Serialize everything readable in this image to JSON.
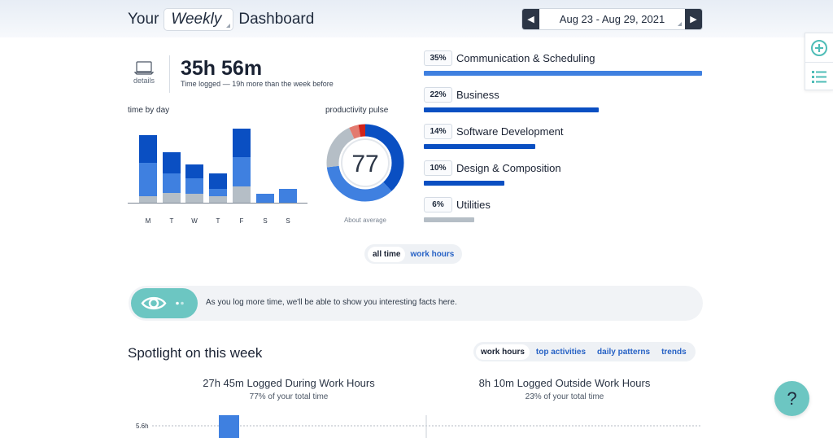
{
  "header": {
    "title_prefix": "Your",
    "period": "Weekly",
    "title_suffix": "Dashboard",
    "date_range": "Aug 23 - Aug 29, 2021"
  },
  "summary": {
    "details_label": "details",
    "total_time": "35h 56m",
    "subtitle": "Time logged — 19h more than the week before"
  },
  "time_by_day": {
    "label": "time by day",
    "days": [
      "M",
      "T",
      "W",
      "T",
      "F",
      "S",
      "S"
    ],
    "colors": {
      "dark": "#0a4fc2",
      "mid": "#3f80e0",
      "gray": "#b5bec6"
    },
    "stacks": [
      {
        "dark": 0.33,
        "mid": 0.39,
        "gray": 0.08
      },
      {
        "dark": 0.25,
        "mid": 0.23,
        "gray": 0.12
      },
      {
        "dark": 0.16,
        "mid": 0.18,
        "gray": 0.11
      },
      {
        "dark": 0.18,
        "mid": 0.09,
        "gray": 0.08
      },
      {
        "dark": 0.34,
        "mid": 0.35,
        "gray": 0.19
      },
      {
        "dark": 0.0,
        "mid": 0.11,
        "gray": 0.0
      },
      {
        "dark": 0.0,
        "mid": 0.16,
        "gray": 0.0
      }
    ]
  },
  "productivity": {
    "label": "productivity pulse",
    "score": "77",
    "caption": "About average",
    "segments": [
      {
        "share": 0.38,
        "color": "#0a4fc2"
      },
      {
        "share": 0.35,
        "color": "#3f80e0"
      },
      {
        "share": 0.2,
        "color": "#b5bec6"
      },
      {
        "share": 0.04,
        "color": "#e37a6f"
      },
      {
        "share": 0.03,
        "color": "#d0231b"
      }
    ]
  },
  "categories": [
    {
      "pct": "35%",
      "name": "Communication & Scheduling",
      "fraction": 1.0,
      "color": "#3f80e0"
    },
    {
      "pct": "22%",
      "name": "Business",
      "fraction": 0.63,
      "color": "#0a4fc2"
    },
    {
      "pct": "14%",
      "name": "Software Development",
      "fraction": 0.4,
      "color": "#0a4fc2"
    },
    {
      "pct": "10%",
      "name": "Design & Composition",
      "fraction": 0.29,
      "color": "#0a4fc2"
    },
    {
      "pct": "6%",
      "name": "Utilities",
      "fraction": 0.18,
      "color": "#b5bec6"
    }
  ],
  "toggle": {
    "all_time": "all time",
    "work_hours": "work hours"
  },
  "facts": {
    "text": "As you log more time, we'll be able to show you interesting facts here."
  },
  "spotlight": {
    "title": "Spotlight on this week",
    "tabs": [
      "work hours",
      "top activities",
      "daily patterns",
      "trends"
    ],
    "inside": {
      "big": "27h 45m Logged During Work Hours",
      "small": "77% of your total time"
    },
    "outside": {
      "big": "8h 10m Logged Outside Work Hours",
      "small": "23% of your total time"
    },
    "axis_label": "5.6h"
  },
  "help": {
    "label": "?"
  }
}
